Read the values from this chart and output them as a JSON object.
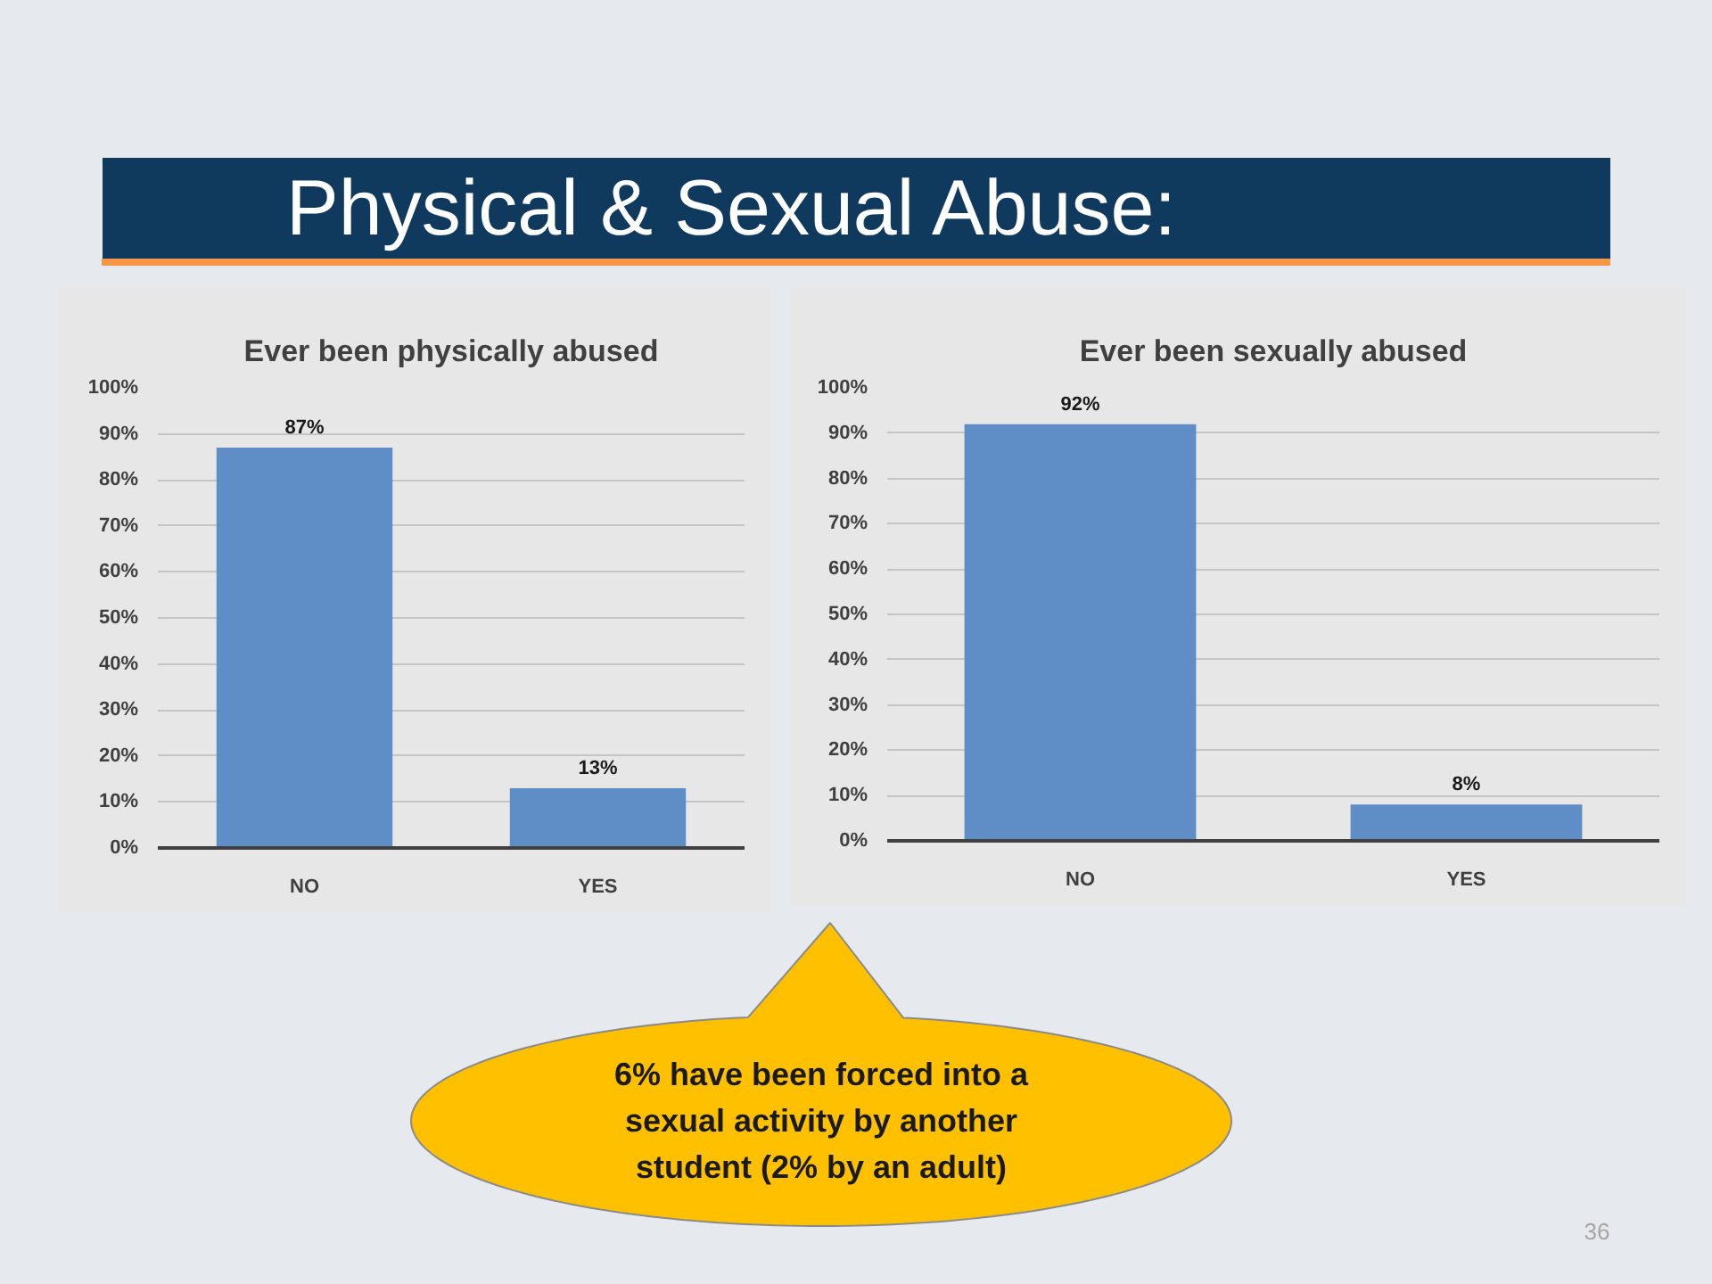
{
  "chart_data": [
    {
      "type": "other",
      "title": "Physical & Sexual Abuse:"
    },
    {
      "type": "bar",
      "title": "Ever been physically abused",
      "categories": [
        "NO",
        "YES"
      ],
      "values": [
        87,
        13
      ],
      "value_labels": [
        "87%",
        "13%"
      ],
      "color": "#5f8ec7",
      "ylim": [
        0,
        100
      ],
      "yticks": [
        {
          "value": 0,
          "label": "0%"
        },
        {
          "value": 10,
          "label": "10%"
        },
        {
          "value": 20,
          "label": "20%"
        },
        {
          "value": 30,
          "label": "30%"
        },
        {
          "value": 40,
          "label": "40%"
        },
        {
          "value": 50,
          "label": "50%"
        },
        {
          "value": 60,
          "label": "60%"
        },
        {
          "value": 70,
          "label": "70%"
        },
        {
          "value": 80,
          "label": "80%"
        },
        {
          "value": 90,
          "label": "90%"
        },
        {
          "value": 100,
          "label": "100%"
        }
      ],
      "grid": "y"
    },
    {
      "type": "bar",
      "title": "Ever been sexually abused",
      "categories": [
        "NO",
        "YES"
      ],
      "values": [
        92,
        8
      ],
      "value_labels": [
        "92%",
        "8%"
      ],
      "color": "#5f8ec7",
      "ylim": [
        0,
        100
      ],
      "yticks": [
        {
          "value": 0,
          "label": "0%"
        },
        {
          "value": 10,
          "label": "10%"
        },
        {
          "value": 20,
          "label": "20%"
        },
        {
          "value": 30,
          "label": "30%"
        },
        {
          "value": 40,
          "label": "40%"
        },
        {
          "value": 50,
          "label": "50%"
        },
        {
          "value": 60,
          "label": "60%"
        },
        {
          "value": 70,
          "label": "70%"
        },
        {
          "value": 80,
          "label": "80%"
        },
        {
          "value": 90,
          "label": "90%"
        },
        {
          "value": 100,
          "label": "100%"
        }
      ],
      "grid": "y"
    },
    {
      "type": "other",
      "annotations": [
        "6% have been forced into a sexual activity by another student (2% by an adult)",
        "36"
      ]
    }
  ]
}
